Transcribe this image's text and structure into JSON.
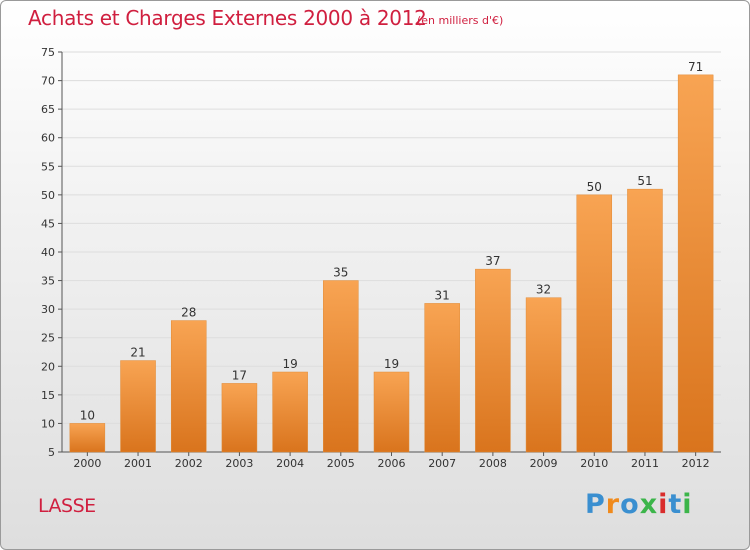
{
  "header": {
    "title": "Achats et Charges Externes 2000 à 2012",
    "unit": "(en milliers d'€)"
  },
  "footer": {
    "commune": "LASSE",
    "logo_letters": [
      "P",
      "r",
      "o",
      "x",
      "i",
      "t",
      "i"
    ],
    "logo_colors": [
      "#3a8fd0",
      "#f08a1c",
      "#3a8fd0",
      "#3cb54a",
      "#d92c2c",
      "#3a8fd0",
      "#3cb54a"
    ]
  },
  "colors": {
    "title": "#d01f3f",
    "bar_light": "#f8a453",
    "bar_dark": "#d9741d",
    "grid": "#dddddd"
  },
  "chart_data": {
    "type": "bar",
    "title": "Achats et Charges Externes 2000 à 2012",
    "xlabel": "",
    "ylabel": "",
    "categories": [
      "2000",
      "2001",
      "2002",
      "2003",
      "2004",
      "2005",
      "2006",
      "2007",
      "2008",
      "2009",
      "2010",
      "2011",
      "2012"
    ],
    "values": [
      10,
      21,
      28,
      17,
      19,
      35,
      19,
      31,
      37,
      32,
      50,
      51,
      71
    ],
    "ylim": [
      5,
      75
    ],
    "yticks": [
      5,
      10,
      15,
      20,
      25,
      30,
      35,
      40,
      45,
      50,
      55,
      60,
      65,
      70,
      75
    ],
    "grid": true
  }
}
